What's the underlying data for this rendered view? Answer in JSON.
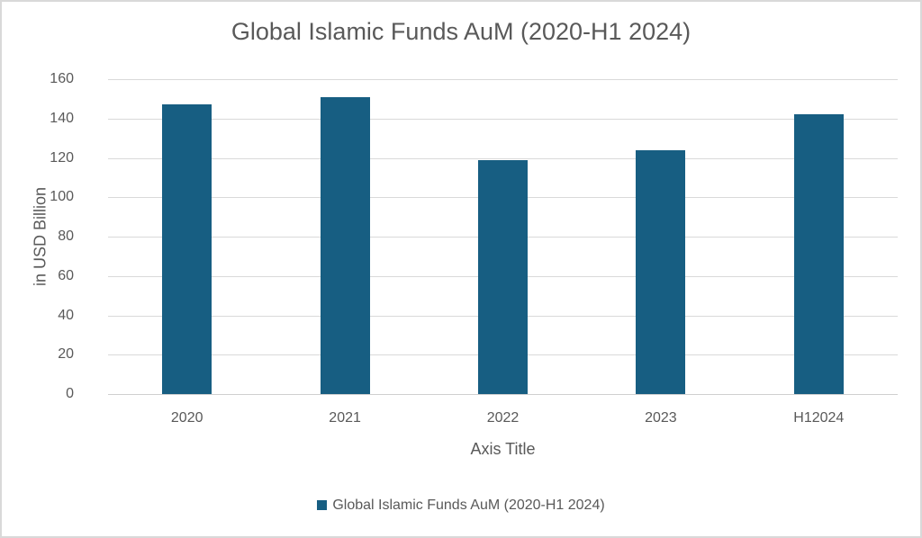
{
  "chart_data": {
    "type": "bar",
    "title": "Global Islamic Funds AuM (2020-H1 2024)",
    "categories": [
      "2020",
      "2021",
      "2022",
      "2023",
      "H12024"
    ],
    "series": [
      {
        "name": "Global Islamic Funds AuM (2020-H1 2024)",
        "values": [
          147,
          151,
          119,
          124,
          142
        ],
        "color": "#175e82"
      }
    ],
    "xlabel": "Axis Title",
    "ylabel": "in USD Billion",
    "ylim": [
      0,
      160
    ],
    "yticks": [
      "0",
      "20",
      "40",
      "60",
      "80",
      "100",
      "120",
      "140",
      "160"
    ],
    "grid": true,
    "legend_position": "bottom"
  },
  "colors": {
    "bar": "#175e82",
    "text": "#595959",
    "grid": "#d9d9d9"
  }
}
